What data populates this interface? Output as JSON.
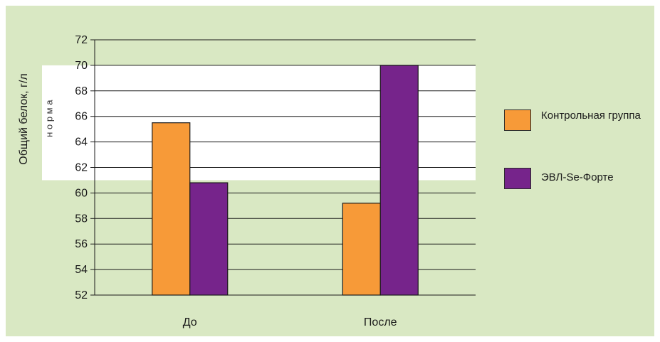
{
  "chart_data": {
    "type": "bar",
    "ylabel": "Общий белок, г/л",
    "categories": [
      "До",
      "После"
    ],
    "ylim": [
      52,
      72
    ],
    "yticks": [
      52,
      54,
      56,
      58,
      60,
      62,
      64,
      66,
      68,
      70,
      72
    ],
    "grid": true,
    "legend_position": "right",
    "series": [
      {
        "name": "Контрольная группа",
        "color": "#f79a38",
        "values": [
          65.5,
          59.2
        ]
      },
      {
        "name": "ЭВЛ-Se-Форте",
        "color": "#76248b",
        "values": [
          60.8,
          70.0
        ]
      }
    ],
    "norm_band": {
      "label": "н о р м а",
      "range": [
        61,
        70
      ]
    }
  }
}
